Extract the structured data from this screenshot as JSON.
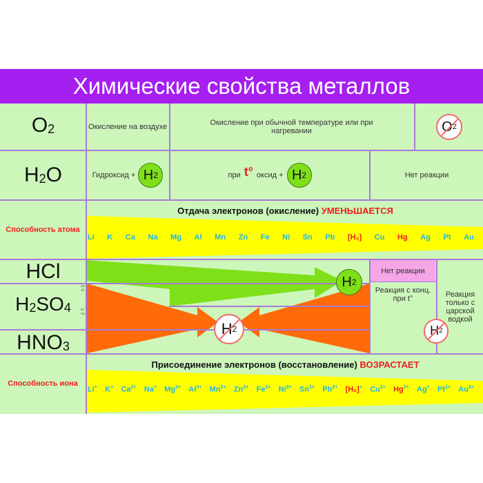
{
  "title": "Химические свойства металлов",
  "rows": {
    "o2": {
      "formula": "O",
      "sub": "2",
      "air": "Окисление на воздухе",
      "normal": "Окисление при обычной температуре или при нагревании",
      "no_symbol": "O2"
    },
    "h2o": {
      "formula_h": "H",
      "sub": "2",
      "formula_o": "O",
      "hydroxide": "Гидроксид +",
      "heat_pre": "при",
      "t": "t°",
      "oxide": "оксид +",
      "h2": "H2",
      "none": "Нет реакции"
    },
    "atom": {
      "label": "Способность атома",
      "header": "Отдача электронов (окисление)",
      "trend": "УМЕНЬШАЕТСЯ",
      "elements": [
        "Li",
        "K",
        "Ca",
        "Na",
        "Mg",
        "Al",
        "Mn",
        "Zn",
        "Fe",
        "Ni",
        "Sn",
        "Pb",
        "[H₂]",
        "Cu",
        "Hg",
        "Ag",
        "Pt",
        "Au"
      ]
    },
    "acids": {
      "hcl": "HCl",
      "h2so4": "H2SO4",
      "hno3": "HNO3",
      "dilute": "разб",
      "conc": "конц",
      "no_reaction": "Нет реакции",
      "conc_heat": "Реакция с конц. при t°",
      "aqua_regia": "Реакция только с царской водкой",
      "h2": "H2"
    },
    "ion": {
      "label": "Способность иона",
      "header": "Присоединение электронов (восстановление)",
      "trend": "ВОЗРАСТАЕТ",
      "elements": [
        [
          "Li",
          "+"
        ],
        [
          "K",
          "+"
        ],
        [
          "Ca",
          "2+"
        ],
        [
          "Na",
          "+"
        ],
        [
          "Mg",
          "2+"
        ],
        [
          "Al",
          "3+"
        ],
        [
          "Mn",
          "2+"
        ],
        [
          "Zn",
          "2+"
        ],
        [
          "Fe",
          "2+"
        ],
        [
          "Ni",
          "2+"
        ],
        [
          "Sn",
          "2+"
        ],
        [
          "Pb",
          "2+"
        ],
        [
          "[H₂]",
          "+"
        ],
        [
          "Cu",
          "2+"
        ],
        [
          "Hg",
          "2+"
        ],
        [
          "Ag",
          "+"
        ],
        [
          "Pt",
          "2+"
        ],
        [
          "Au",
          "3+"
        ]
      ]
    }
  },
  "colors": {
    "title_bg": "#a51ff0",
    "bg": "#cdf6bb",
    "lines": "#a77ad8",
    "yellow": "#ffff00",
    "green_arrow": "#7fe01a",
    "orange_arrow": "#ff6a0a",
    "no_reaction_bg": "#f4a6e6",
    "red": "#ee1c1c",
    "cyan": "#1fb5e8"
  }
}
